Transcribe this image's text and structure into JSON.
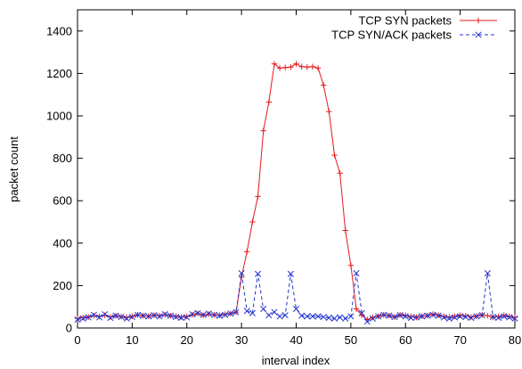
{
  "chart_data": {
    "type": "line",
    "title": "",
    "xlabel": "interval index",
    "ylabel": "packet count",
    "xlim": [
      0,
      80
    ],
    "ylim": [
      0,
      1500
    ],
    "xticks": [
      "0",
      "10",
      "20",
      "30",
      "40",
      "50",
      "60",
      "70",
      "80"
    ],
    "yticks": [
      "0",
      "200",
      "400",
      "600",
      "800",
      "1000",
      "1200",
      "1400"
    ],
    "grid": false,
    "legend_position": "top-right",
    "x": [
      0,
      1,
      2,
      3,
      4,
      5,
      6,
      7,
      8,
      9,
      10,
      11,
      12,
      13,
      14,
      15,
      16,
      17,
      18,
      19,
      20,
      21,
      22,
      23,
      24,
      25,
      26,
      27,
      28,
      29,
      30,
      31,
      32,
      33,
      34,
      35,
      36,
      37,
      38,
      39,
      40,
      41,
      42,
      43,
      44,
      45,
      46,
      47,
      48,
      49,
      50,
      51,
      52,
      53,
      54,
      55,
      56,
      57,
      58,
      59,
      60,
      61,
      62,
      63,
      64,
      65,
      66,
      67,
      68,
      69,
      70,
      71,
      72,
      73,
      74,
      75,
      76,
      77,
      78,
      79,
      80
    ],
    "series": [
      {
        "name": "TCP SYN packets",
        "color": "#e41a1c",
        "dash": "solid",
        "marker": "plus",
        "values": [
          45,
          50,
          52,
          58,
          55,
          60,
          52,
          58,
          54,
          50,
          55,
          62,
          58,
          56,
          60,
          58,
          62,
          58,
          55,
          52,
          55,
          62,
          68,
          60,
          65,
          62,
          60,
          65,
          68,
          75,
          240,
          360,
          500,
          620,
          930,
          1065,
          1245,
          1225,
          1228,
          1230,
          1245,
          1232,
          1230,
          1232,
          1225,
          1145,
          1020,
          815,
          730,
          460,
          295,
          90,
          60,
          40,
          50,
          55,
          62,
          58,
          52,
          62,
          60,
          55,
          50,
          56,
          58,
          65,
          60,
          55,
          52,
          55,
          60,
          58,
          52,
          56,
          62,
          58,
          50,
          55,
          60,
          55,
          50
        ]
      },
      {
        "name": "TCP SYN/ACK packets",
        "color": "#2233cc",
        "dash": "dashed",
        "marker": "x",
        "values": [
          40,
          45,
          50,
          62,
          50,
          65,
          48,
          58,
          52,
          45,
          52,
          62,
          58,
          55,
          60,
          55,
          65,
          58,
          52,
          48,
          50,
          65,
          70,
          62,
          68,
          62,
          58,
          62,
          68,
          75,
          258,
          80,
          70,
          255,
          90,
          60,
          75,
          55,
          60,
          255,
          90,
          58,
          55,
          55,
          55,
          52,
          48,
          45,
          50,
          45,
          55,
          258,
          70,
          30,
          45,
          55,
          62,
          58,
          52,
          60,
          55,
          48,
          50,
          55,
          58,
          62,
          58,
          50,
          45,
          50,
          55,
          52,
          48,
          55,
          60,
          258,
          52,
          48,
          55,
          50,
          45
        ]
      }
    ]
  }
}
